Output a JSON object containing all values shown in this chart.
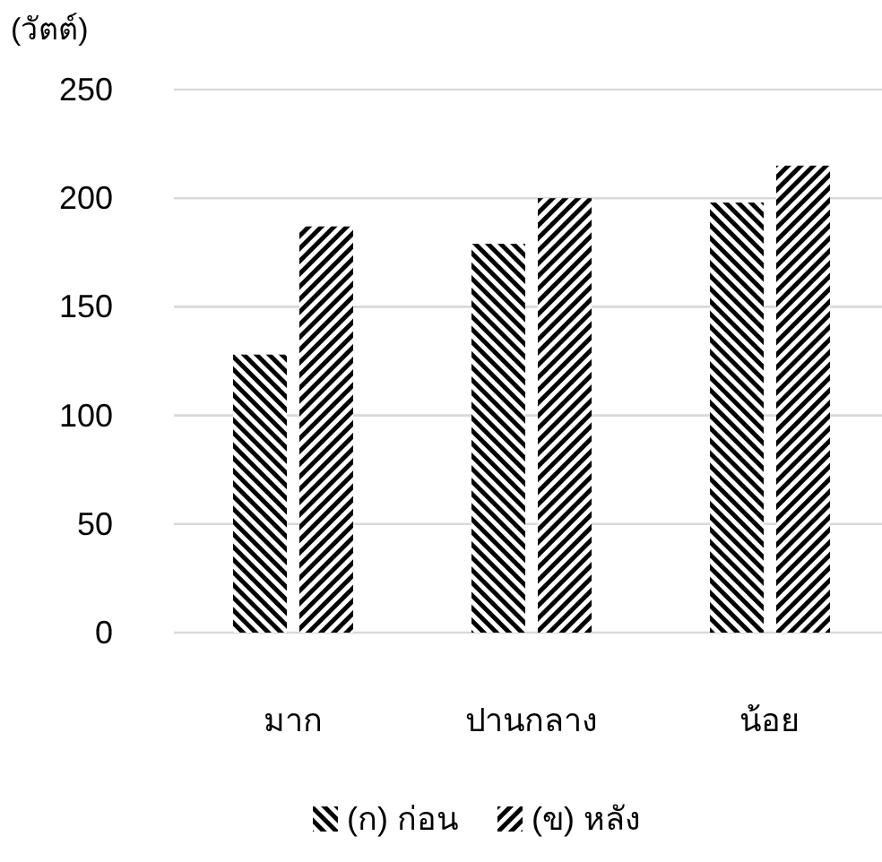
{
  "chart_data": {
    "type": "bar",
    "ylabel": "(วัตต์)",
    "categories": [
      "มาก",
      "ปานกลาง",
      "น้อย"
    ],
    "series": [
      {
        "name": "(ก) ก่อน",
        "color": "#000000",
        "values": [
          128,
          179,
          198
        ]
      },
      {
        "name": "(ข) หลัง",
        "color": "#000000",
        "values": [
          187,
          200,
          215
        ]
      }
    ],
    "ylim": [
      0,
      250
    ],
    "yticks": [
      0,
      50,
      100,
      150,
      200,
      250
    ],
    "grid": "y",
    "legend": "bottom"
  }
}
